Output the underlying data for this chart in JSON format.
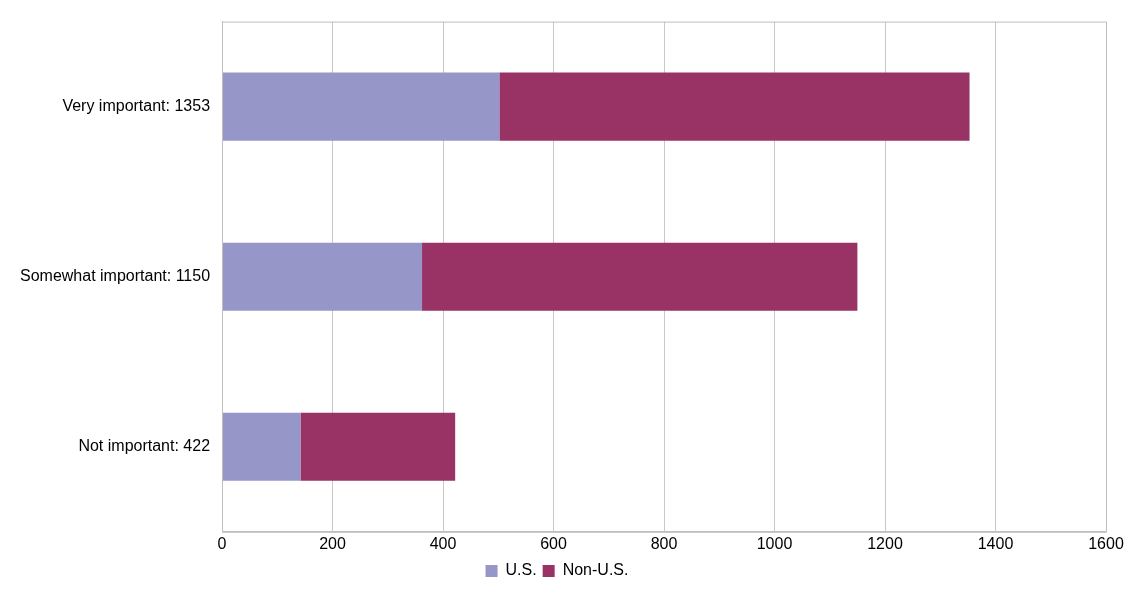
{
  "chart_data": {
    "type": "bar",
    "orientation": "horizontal",
    "stacked": true,
    "categories": [
      "Very important: 1353",
      "Somewhat important: 1150",
      "Not important: 422"
    ],
    "series": [
      {
        "name": "U.S.",
        "color": "#9696c8",
        "values": [
          502,
          362,
          142
        ]
      },
      {
        "name": "Non-U.S.",
        "color": "#993366",
        "values": [
          851,
          788,
          280
        ]
      }
    ],
    "xlim": [
      0,
      1600
    ],
    "xticks": [
      0,
      200,
      400,
      600,
      800,
      1000,
      1200,
      1400,
      1600
    ],
    "grid": "x",
    "legend": "bottom"
  }
}
